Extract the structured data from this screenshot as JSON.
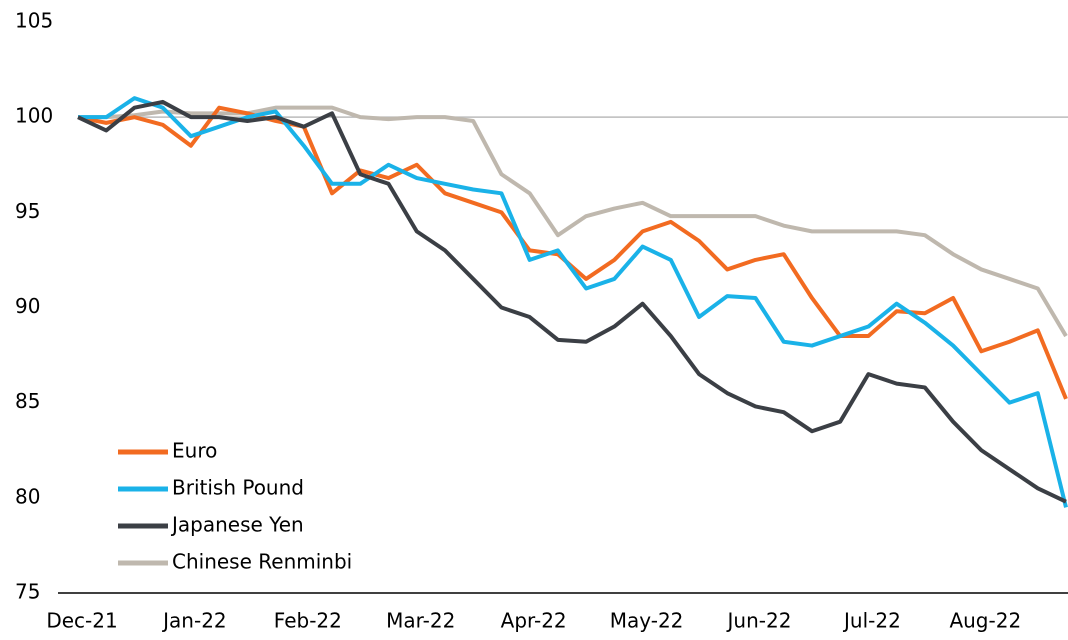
{
  "chart_data": {
    "type": "line",
    "categories": [
      "Dec-21",
      null,
      null,
      null,
      "Jan-22",
      null,
      null,
      null,
      "Feb-22",
      null,
      null,
      null,
      "Mar-22",
      null,
      null,
      null,
      "Apr-22",
      null,
      null,
      null,
      "May-22",
      null,
      null,
      null,
      "Jun-22",
      null,
      null,
      null,
      "Jul-22",
      null,
      null,
      null,
      "Aug-22",
      null,
      null,
      null
    ],
    "series": [
      {
        "name": "Euro",
        "color": "#f26b21",
        "values": [
          100,
          99.7,
          100,
          99.6,
          98.5,
          100.5,
          100.2,
          99.8,
          99.5,
          96,
          97.2,
          96.8,
          97.5,
          96,
          95.5,
          95,
          93,
          92.8,
          91.5,
          92.5,
          94,
          94.5,
          93.5,
          92,
          92.5,
          92.8,
          90.5,
          88.5,
          88.5,
          89.8,
          89.7,
          90.5,
          87.7,
          88.2,
          88.8,
          85.2
        ]
      },
      {
        "name": "British Pound",
        "color": "#1ab2e8",
        "values": [
          100,
          100,
          101,
          100.5,
          99,
          99.5,
          100,
          100.3,
          98.5,
          96.5,
          96.5,
          97.5,
          96.8,
          96.5,
          96.2,
          96,
          92.5,
          93,
          91,
          91.5,
          93.2,
          92.5,
          89.5,
          90.6,
          90.5,
          88.2,
          88,
          88.5,
          89,
          90.2,
          89.2,
          88,
          86.5,
          85,
          85.5,
          79.5
        ]
      },
      {
        "name": "Japanese Yen",
        "color": "#3b3f45",
        "values": [
          100,
          99.3,
          100.5,
          100.8,
          100,
          100,
          99.8,
          100,
          99.5,
          100.2,
          97,
          96.5,
          94,
          93,
          91.5,
          90,
          89.5,
          88.3,
          88.2,
          89,
          90.2,
          88.5,
          86.5,
          85.5,
          84.8,
          84.5,
          83.5,
          84,
          86.5,
          86,
          85.8,
          84,
          82.5,
          81.5,
          80.5,
          79.8
        ]
      },
      {
        "name": "Chinese Renminbi",
        "color": "#bfb8ae",
        "values": [
          100,
          100,
          100.1,
          100.3,
          100.2,
          100.2,
          100.2,
          100.5,
          100.5,
          100.5,
          100,
          99.9,
          100,
          100,
          99.8,
          97,
          96,
          93.8,
          94.8,
          95.2,
          95.5,
          94.8,
          94.8,
          94.8,
          94.8,
          94.3,
          94,
          94,
          94,
          94,
          93.8,
          92.8,
          92,
          91.5,
          91,
          88.5
        ]
      }
    ],
    "ylim": [
      75,
      105
    ],
    "yticks": [
      75,
      80,
      85,
      90,
      95,
      100,
      105
    ],
    "hline": 100,
    "legend": "lower left"
  }
}
